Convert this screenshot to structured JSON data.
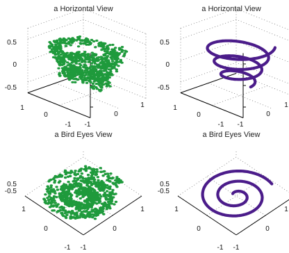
{
  "chart_data": [
    {
      "type": "scatter",
      "title": "a Horizontal View",
      "view": "horizontal",
      "marker": "dots",
      "color": "#1f9a3c",
      "zlim": [
        -0.75,
        0.75
      ],
      "z_tick_labels": [
        "0.5",
        "0",
        "-0.5"
      ],
      "x_tick_labels": [
        "1",
        "0",
        "-1"
      ],
      "y_tick_labels": [
        "-1",
        "0",
        "1"
      ],
      "grid": "dotted",
      "shape": "helix"
    },
    {
      "type": "line",
      "title": "a Horizontal View",
      "view": "horizontal",
      "marker": "thick-line",
      "color": "#4b1c8a",
      "zlim": [
        -0.75,
        0.75
      ],
      "z_tick_labels": [
        "0.5",
        "0",
        "-0.5"
      ],
      "x_tick_labels": [
        "1",
        "0",
        "-1"
      ],
      "y_tick_labels": [
        "-1",
        "0",
        "1"
      ],
      "grid": "dotted",
      "shape": "helix"
    },
    {
      "type": "scatter",
      "title": "a Bird Eyes View",
      "view": "top",
      "marker": "dots",
      "color": "#1f9a3c",
      "z_tick_labels": [
        "0.5",
        "-0.5"
      ],
      "x_tick_labels": [
        "1",
        "0",
        "-1"
      ],
      "y_tick_labels": [
        "-1",
        "0",
        "1"
      ],
      "grid": "dotted",
      "shape": "spiral"
    },
    {
      "type": "line",
      "title": "a Bird Eyes View",
      "view": "top",
      "marker": "thick-line",
      "color": "#4b1c8a",
      "z_tick_labels": [
        "0.5",
        "-0.5"
      ],
      "x_tick_labels": [
        "1",
        "0",
        "-1"
      ],
      "y_tick_labels": [
        "-1",
        "0",
        "1"
      ],
      "grid": "dotted",
      "shape": "spiral"
    }
  ]
}
